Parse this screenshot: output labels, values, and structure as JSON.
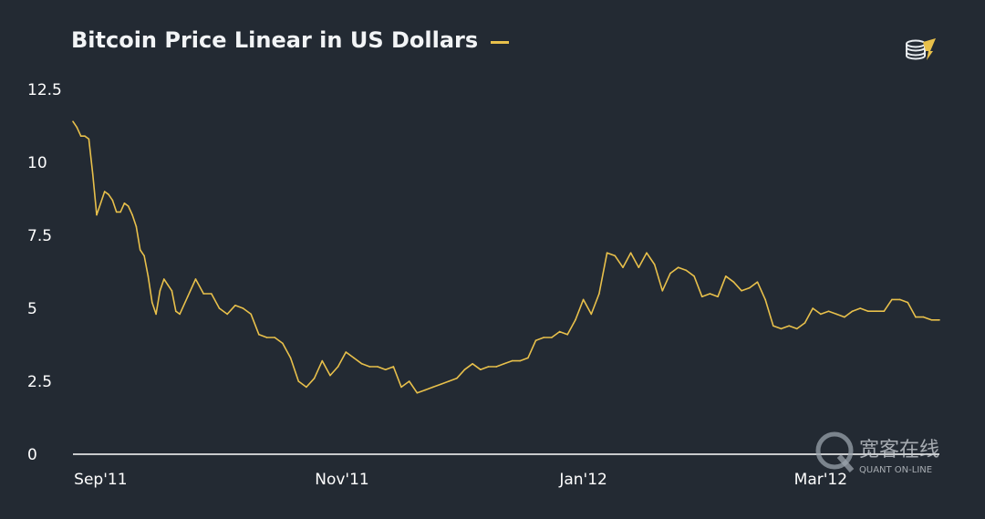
{
  "colors": {
    "background": "#232a33",
    "series": "#e8c04b",
    "axis": "#ffffff"
  },
  "icons": {
    "logo": "coin-stack-logo-icon",
    "watermark": "quant-online-watermark"
  },
  "watermark": {
    "cn": "宽客在线",
    "en": "QUANT ON-LINE"
  },
  "chart_data": {
    "type": "line",
    "title": "Bitcoin Price Linear in US Dollars",
    "xlabel": "",
    "ylabel": "",
    "ylim": [
      0,
      12.5
    ],
    "yticks": [
      0,
      2.5,
      5,
      7.5,
      10,
      12.5
    ],
    "ytick_labels": [
      "0",
      "2.5",
      "5",
      "7.5",
      "10",
      "12.5"
    ],
    "xlim": [
      "2011-08-25",
      "2012-03-31"
    ],
    "xticks": [
      "2011-09-01",
      "2011-11-01",
      "2012-01-01",
      "2012-03-01"
    ],
    "xtick_labels": [
      "Sep'11",
      "Nov'11",
      "Jan'12",
      "Mar'12"
    ],
    "grid": false,
    "legend": "top-left, next to title (line swatch, no label)",
    "series": [
      {
        "x": [
          "2011-08-25",
          "2011-08-26",
          "2011-08-27",
          "2011-08-28",
          "2011-08-29",
          "2011-08-30",
          "2011-08-31",
          "2011-09-01",
          "2011-09-02",
          "2011-09-03",
          "2011-09-04",
          "2011-09-05",
          "2011-09-06",
          "2011-09-07",
          "2011-09-08",
          "2011-09-09",
          "2011-09-10",
          "2011-09-11",
          "2011-09-12",
          "2011-09-13",
          "2011-09-14",
          "2011-09-15",
          "2011-09-16",
          "2011-09-17",
          "2011-09-18",
          "2011-09-19",
          "2011-09-20",
          "2011-09-21",
          "2011-09-23",
          "2011-09-25",
          "2011-09-27",
          "2011-09-29",
          "2011-10-01",
          "2011-10-03",
          "2011-10-05",
          "2011-10-07",
          "2011-10-09",
          "2011-10-11",
          "2011-10-13",
          "2011-10-15",
          "2011-10-17",
          "2011-10-19",
          "2011-10-21",
          "2011-10-23",
          "2011-10-25",
          "2011-10-27",
          "2011-10-29",
          "2011-10-31",
          "2011-11-02",
          "2011-11-04",
          "2011-11-06",
          "2011-11-08",
          "2011-11-10",
          "2011-11-12",
          "2011-11-14",
          "2011-11-16",
          "2011-11-18",
          "2011-11-20",
          "2011-11-22",
          "2011-11-24",
          "2011-11-26",
          "2011-11-28",
          "2011-11-30",
          "2011-12-02",
          "2011-12-04",
          "2011-12-06",
          "2011-12-08",
          "2011-12-10",
          "2011-12-12",
          "2011-12-14",
          "2011-12-16",
          "2011-12-18",
          "2011-12-20",
          "2011-12-22",
          "2011-12-24",
          "2011-12-26",
          "2011-12-28",
          "2011-12-30",
          "2012-01-01",
          "2012-01-03",
          "2012-01-05",
          "2012-01-07",
          "2012-01-09",
          "2012-01-11",
          "2012-01-13",
          "2012-01-15",
          "2012-01-17",
          "2012-01-19",
          "2012-01-21",
          "2012-01-23",
          "2012-01-25",
          "2012-01-27",
          "2012-01-29",
          "2012-01-31",
          "2012-02-02",
          "2012-02-04",
          "2012-02-06",
          "2012-02-08",
          "2012-02-10",
          "2012-02-12",
          "2012-02-14",
          "2012-02-16",
          "2012-02-18",
          "2012-02-20",
          "2012-02-22",
          "2012-02-24",
          "2012-02-26",
          "2012-02-28",
          "2012-03-01",
          "2012-03-03",
          "2012-03-05",
          "2012-03-07",
          "2012-03-09",
          "2012-03-11",
          "2012-03-13",
          "2012-03-15",
          "2012-03-17",
          "2012-03-19",
          "2012-03-21",
          "2012-03-23",
          "2012-03-25",
          "2012-03-27",
          "2012-03-29",
          "2012-03-31"
        ],
        "values": [
          11.4,
          11.2,
          10.9,
          10.9,
          10.8,
          9.6,
          8.2,
          8.6,
          9.0,
          8.9,
          8.7,
          8.3,
          8.3,
          8.6,
          8.5,
          8.2,
          7.8,
          7.0,
          6.8,
          6.1,
          5.2,
          4.8,
          5.6,
          6.0,
          5.8,
          5.6,
          4.9,
          4.8,
          5.4,
          6.0,
          5.5,
          5.5,
          5.0,
          4.8,
          5.1,
          5.0,
          4.8,
          4.1,
          4.0,
          4.0,
          3.8,
          3.3,
          2.5,
          2.3,
          2.6,
          3.2,
          2.7,
          3.0,
          3.5,
          3.3,
          3.1,
          3.0,
          3.0,
          2.9,
          3.0,
          2.3,
          2.5,
          2.1,
          2.2,
          2.3,
          2.4,
          2.5,
          2.6,
          2.9,
          3.1,
          2.9,
          3.0,
          3.0,
          3.1,
          3.2,
          3.2,
          3.3,
          3.9,
          4.0,
          4.0,
          4.2,
          4.1,
          4.6,
          5.3,
          4.8,
          5.5,
          6.9,
          6.8,
          6.4,
          6.9,
          6.4,
          6.9,
          6.5,
          5.6,
          6.2,
          6.4,
          6.3,
          6.1,
          5.4,
          5.5,
          5.4,
          6.1,
          5.9,
          5.6,
          5.7,
          5.9,
          5.3,
          4.4,
          4.3,
          4.4,
          4.3,
          4.5,
          5.0,
          4.8,
          4.9,
          4.8,
          4.7,
          4.9,
          5.0,
          4.9,
          4.9,
          4.9,
          5.3,
          5.3,
          5.2,
          4.7,
          4.7,
          4.6,
          4.6
        ]
      }
    ]
  }
}
